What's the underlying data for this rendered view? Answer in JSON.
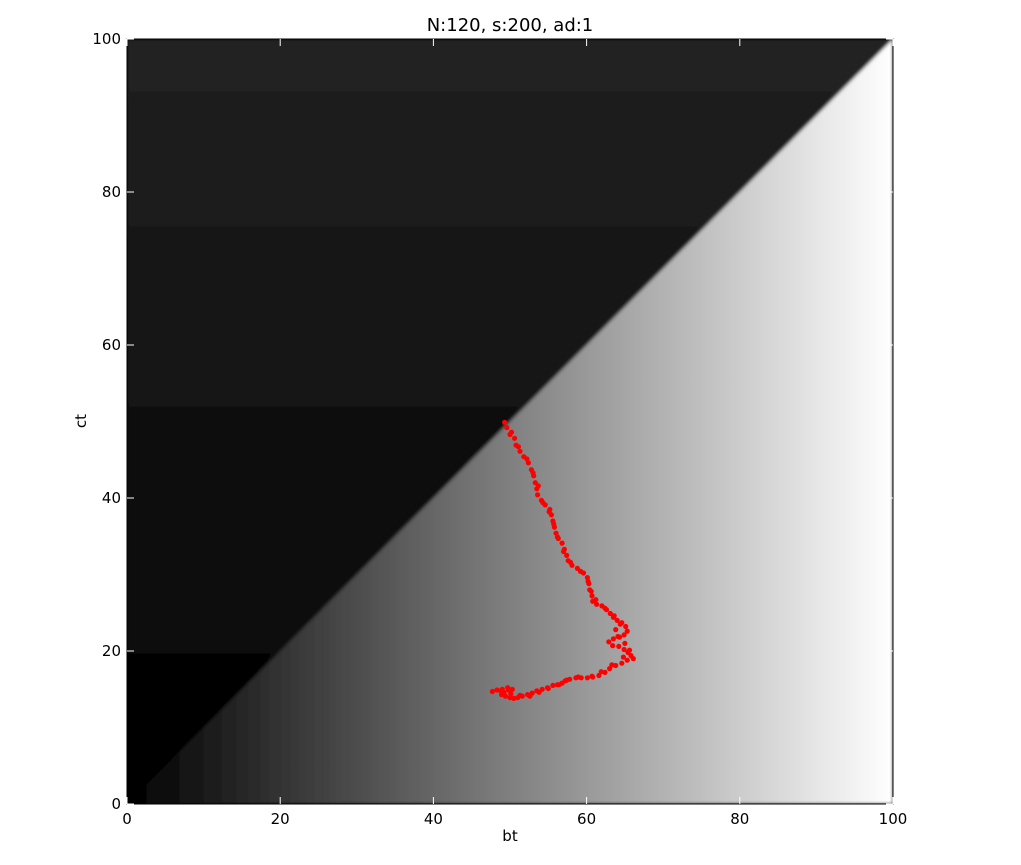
{
  "chart_data": {
    "type": "heatmap",
    "title": "N:120, s:200, ad:1",
    "xlabel": "bt",
    "ylabel": "ct",
    "xlim": [
      0,
      100
    ],
    "ylim": [
      0,
      100
    ],
    "xticks": [
      "0",
      "20",
      "40",
      "60",
      "80",
      "100"
    ],
    "yticks": [
      "0",
      "20",
      "40",
      "60",
      "80",
      "100"
    ],
    "grid": false,
    "heatmap": {
      "colormap": "gray",
      "description_rule": "upper-left of diagonal ct=bt dark (black near bottom to dark gray near top); lower-right brightens with bt"
    },
    "series": [
      {
        "type": "scatter",
        "color": "#ff0000",
        "points": [
          [
            49.3,
            49.9
          ],
          [
            49.6,
            49.2
          ],
          [
            50.2,
            48.6
          ],
          [
            50.6,
            47.8
          ],
          [
            50.8,
            46.9
          ],
          [
            51.3,
            46.1
          ],
          [
            51.8,
            45.4
          ],
          [
            52.4,
            44.6
          ],
          [
            52.8,
            43.7
          ],
          [
            53.1,
            42.9
          ],
          [
            53.3,
            42.0
          ],
          [
            53.5,
            41.2
          ],
          [
            53.6,
            40.4
          ],
          [
            54.1,
            39.7
          ],
          [
            54.6,
            39.1
          ],
          [
            55.2,
            38.5
          ],
          [
            55.4,
            37.8
          ],
          [
            55.6,
            37.0
          ],
          [
            55.8,
            36.2
          ],
          [
            56.0,
            35.4
          ],
          [
            56.3,
            34.7
          ],
          [
            56.8,
            34.1
          ],
          [
            57.1,
            33.3
          ],
          [
            57.4,
            32.5
          ],
          [
            57.6,
            31.8
          ],
          [
            58.1,
            31.2
          ],
          [
            58.8,
            30.8
          ],
          [
            59.6,
            30.2
          ],
          [
            60.1,
            29.6
          ],
          [
            60.3,
            28.8
          ],
          [
            60.4,
            28.0
          ],
          [
            60.7,
            27.2
          ],
          [
            60.8,
            26.5
          ],
          [
            61.3,
            26.1
          ],
          [
            62.0,
            25.9
          ],
          [
            62.6,
            25.4
          ],
          [
            63.1,
            24.9
          ],
          [
            63.5,
            24.4
          ],
          [
            64.0,
            24.0
          ],
          [
            64.6,
            23.7
          ],
          [
            65.1,
            23.2
          ],
          [
            65.3,
            22.6
          ],
          [
            64.9,
            22.1
          ],
          [
            64.3,
            21.8
          ],
          [
            63.5,
            21.6
          ],
          [
            62.9,
            21.2
          ],
          [
            63.4,
            20.7
          ],
          [
            64.2,
            20.6
          ],
          [
            64.9,
            20.2
          ],
          [
            65.4,
            19.8
          ],
          [
            65.8,
            19.4
          ],
          [
            66.1,
            19.0
          ],
          [
            65.3,
            18.8
          ],
          [
            64.6,
            18.4
          ],
          [
            63.8,
            18.1
          ],
          [
            63.0,
            17.7
          ],
          [
            62.4,
            17.2
          ],
          [
            61.6,
            16.8
          ],
          [
            60.8,
            16.6
          ],
          [
            60.1,
            16.5
          ],
          [
            59.3,
            16.5
          ],
          [
            58.6,
            16.5
          ],
          [
            57.8,
            16.3
          ],
          [
            57.2,
            16.1
          ],
          [
            56.8,
            15.8
          ],
          [
            56.4,
            15.6
          ],
          [
            55.6,
            15.5
          ],
          [
            54.9,
            15.2
          ],
          [
            54.2,
            15.0
          ],
          [
            53.5,
            14.8
          ],
          [
            52.9,
            14.5
          ],
          [
            52.3,
            14.3
          ],
          [
            51.6,
            14.1
          ],
          [
            51.0,
            13.9
          ],
          [
            50.5,
            13.8
          ],
          [
            50.0,
            13.9
          ],
          [
            49.4,
            14.1
          ],
          [
            48.9,
            14.3
          ],
          [
            49.2,
            14.6
          ],
          [
            49.8,
            14.9
          ],
          [
            50.3,
            15.0
          ],
          [
            49.7,
            15.2
          ],
          [
            49.0,
            15.0
          ],
          [
            48.3,
            14.9
          ],
          [
            47.7,
            14.7
          ],
          [
            48.8,
            14.8
          ],
          [
            50.1,
            14.4
          ],
          [
            51.3,
            14.2
          ],
          [
            52.6,
            14.1
          ],
          [
            53.8,
            14.6
          ],
          [
            55.0,
            15.1
          ],
          [
            56.2,
            15.6
          ],
          [
            57.4,
            16.2
          ],
          [
            58.9,
            16.6
          ],
          [
            60.7,
            16.7
          ],
          [
            61.9,
            17.3
          ],
          [
            63.3,
            18.2
          ],
          [
            64.8,
            19.2
          ],
          [
            65.6,
            20.1
          ],
          [
            65.0,
            21.0
          ],
          [
            64.1,
            21.9
          ],
          [
            63.8,
            22.8
          ],
          [
            64.4,
            23.5
          ],
          [
            63.6,
            24.6
          ],
          [
            62.4,
            25.6
          ],
          [
            61.2,
            26.7
          ],
          [
            60.6,
            27.8
          ],
          [
            60.2,
            29.1
          ],
          [
            59.2,
            30.4
          ],
          [
            57.9,
            31.6
          ],
          [
            57.0,
            33.0
          ],
          [
            56.2,
            34.9
          ],
          [
            55.7,
            36.6
          ],
          [
            55.1,
            38.2
          ],
          [
            54.3,
            39.4
          ],
          [
            53.7,
            41.6
          ],
          [
            53.0,
            43.3
          ],
          [
            52.2,
            45.1
          ],
          [
            51.1,
            46.7
          ],
          [
            50.0,
            48.3
          ]
        ]
      }
    ]
  }
}
